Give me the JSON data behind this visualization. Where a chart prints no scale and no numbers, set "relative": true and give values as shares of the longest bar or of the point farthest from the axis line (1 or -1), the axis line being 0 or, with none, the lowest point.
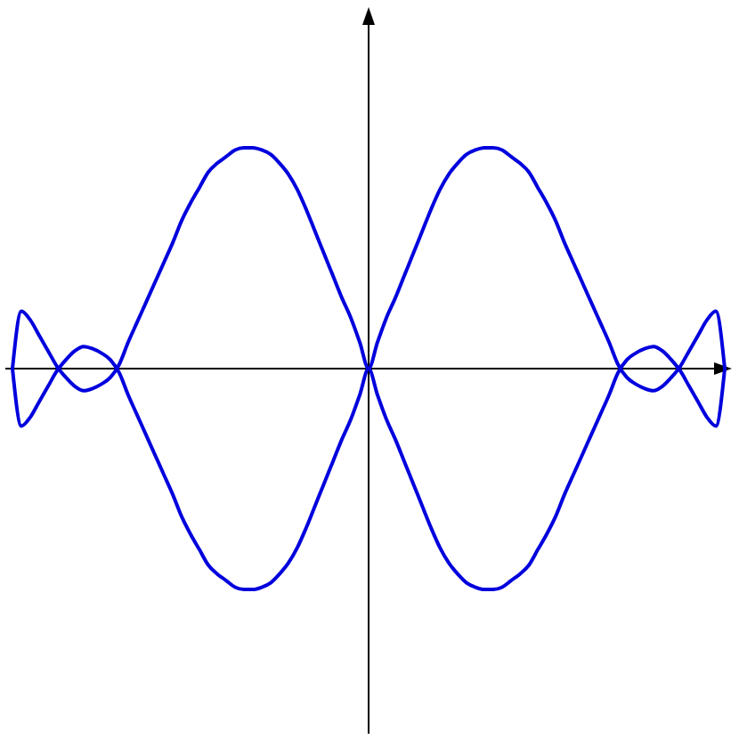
{
  "chart_data": {
    "type": "line",
    "relative": true,
    "categories": [
      null,
      null,
      null,
      null,
      null,
      null,
      null,
      null,
      null,
      null,
      null,
      null,
      null,
      null,
      null,
      null,
      null,
      null,
      null,
      null,
      null,
      null,
      null,
      null,
      null,
      null,
      null,
      null,
      null,
      null,
      null,
      null,
      null,
      null,
      null,
      null,
      null,
      null,
      null,
      null,
      null,
      null,
      null,
      null,
      null,
      null,
      null,
      null,
      null,
      null,
      null,
      null,
      null,
      null,
      null,
      null,
      null,
      null,
      null,
      null,
      null,
      null,
      null,
      null,
      null,
      null,
      null,
      null,
      null,
      null,
      null,
      null,
      null,
      null,
      null,
      null,
      null,
      null,
      null,
      null,
      null
    ],
    "series": [
      {
        "color": "#0000dd",
        "values": [
          0,
          0.26,
          0.22,
          0.15,
          0.08,
          0.01,
          -0.04,
          -0.08,
          -0.1,
          -0.09,
          -0.07,
          -0.04,
          0.02,
          0.12,
          0.21,
          0.3,
          0.39,
          0.48,
          0.57,
          0.67,
          0.75,
          0.82,
          0.89,
          0.93,
          0.96,
          0.99,
          1,
          1,
          0.99,
          0.97,
          0.93,
          0.88,
          0.81,
          0.72,
          0.62,
          0.52,
          0.42,
          0.32,
          0.23,
          0.12,
          0,
          0.12,
          0.23,
          0.32,
          0.42,
          0.52,
          0.62,
          0.72,
          0.81,
          0.88,
          0.93,
          0.97,
          0.99,
          1,
          1,
          0.99,
          0.96,
          0.93,
          0.89,
          0.82,
          0.75,
          0.67,
          0.57,
          0.48,
          0.39,
          0.3,
          0.21,
          0.12,
          0.02,
          -0.04,
          -0.07,
          -0.09,
          -0.1,
          -0.08,
          -0.04,
          0.01,
          0.08,
          0.15,
          0.22,
          0.26,
          0
        ]
      },
      {
        "color": "#0000dd",
        "values": [
          0,
          -0.26,
          -0.22,
          -0.15,
          -0.08,
          -0.01,
          0.04,
          0.08,
          0.1,
          0.09,
          0.07,
          0.04,
          -0.02,
          -0.12,
          -0.21,
          -0.3,
          -0.39,
          -0.48,
          -0.57,
          -0.67,
          -0.75,
          -0.82,
          -0.89,
          -0.93,
          -0.96,
          -0.99,
          -1,
          -1,
          -0.99,
          -0.97,
          -0.93,
          -0.88,
          -0.81,
          -0.72,
          -0.62,
          -0.52,
          -0.42,
          -0.32,
          -0.23,
          -0.12,
          0,
          -0.12,
          -0.23,
          -0.32,
          -0.42,
          -0.52,
          -0.62,
          -0.72,
          -0.81,
          -0.88,
          -0.93,
          -0.97,
          -0.99,
          -1,
          -1,
          -0.99,
          -0.96,
          -0.93,
          -0.89,
          -0.82,
          -0.75,
          -0.67,
          -0.57,
          -0.48,
          -0.39,
          -0.3,
          -0.21,
          -0.12,
          -0.02,
          0.04,
          0.07,
          0.09,
          0.1,
          0.08,
          0.04,
          -0.01,
          -0.08,
          -0.15,
          -0.22,
          -0.26,
          0
        ]
      }
    ]
  }
}
